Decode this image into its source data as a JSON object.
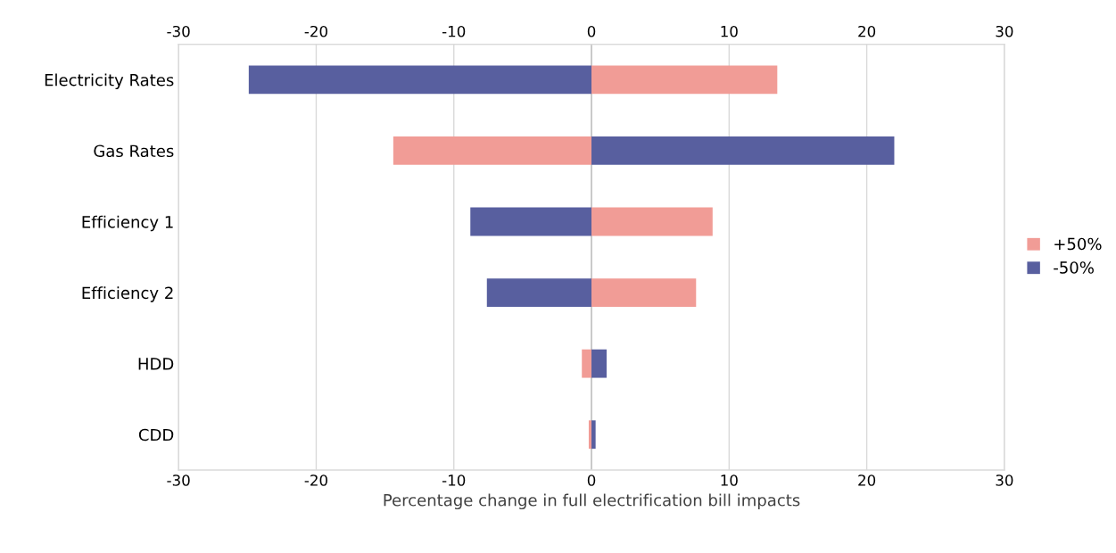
{
  "chart_data": {
    "type": "bar",
    "orientation": "horizontal",
    "stacked": true,
    "categories": [
      "Electricity Rates",
      "Gas Rates",
      "Efficiency 1",
      "Efficiency 2",
      "HDD",
      "CDD"
    ],
    "series": [
      {
        "name": "+50%",
        "color": "#f19c96",
        "values": [
          13.5,
          -14.4,
          8.8,
          7.6,
          -0.7,
          -0.2
        ]
      },
      {
        "name": "-50%",
        "color": "#585f9f",
        "values": [
          -24.9,
          22.0,
          -8.8,
          -7.6,
          1.1,
          0.3
        ]
      }
    ],
    "xlabel": "Percentage change in full electrification bill impacts",
    "xlim": [
      -30,
      30
    ],
    "xticks": [
      -30,
      -20,
      -10,
      0,
      10,
      20,
      30
    ],
    "x2lim": [
      -30,
      30
    ],
    "x2ticks": [
      -30,
      -20,
      -10,
      0,
      10,
      20,
      30
    ],
    "grid": "x",
    "legend": "right"
  }
}
